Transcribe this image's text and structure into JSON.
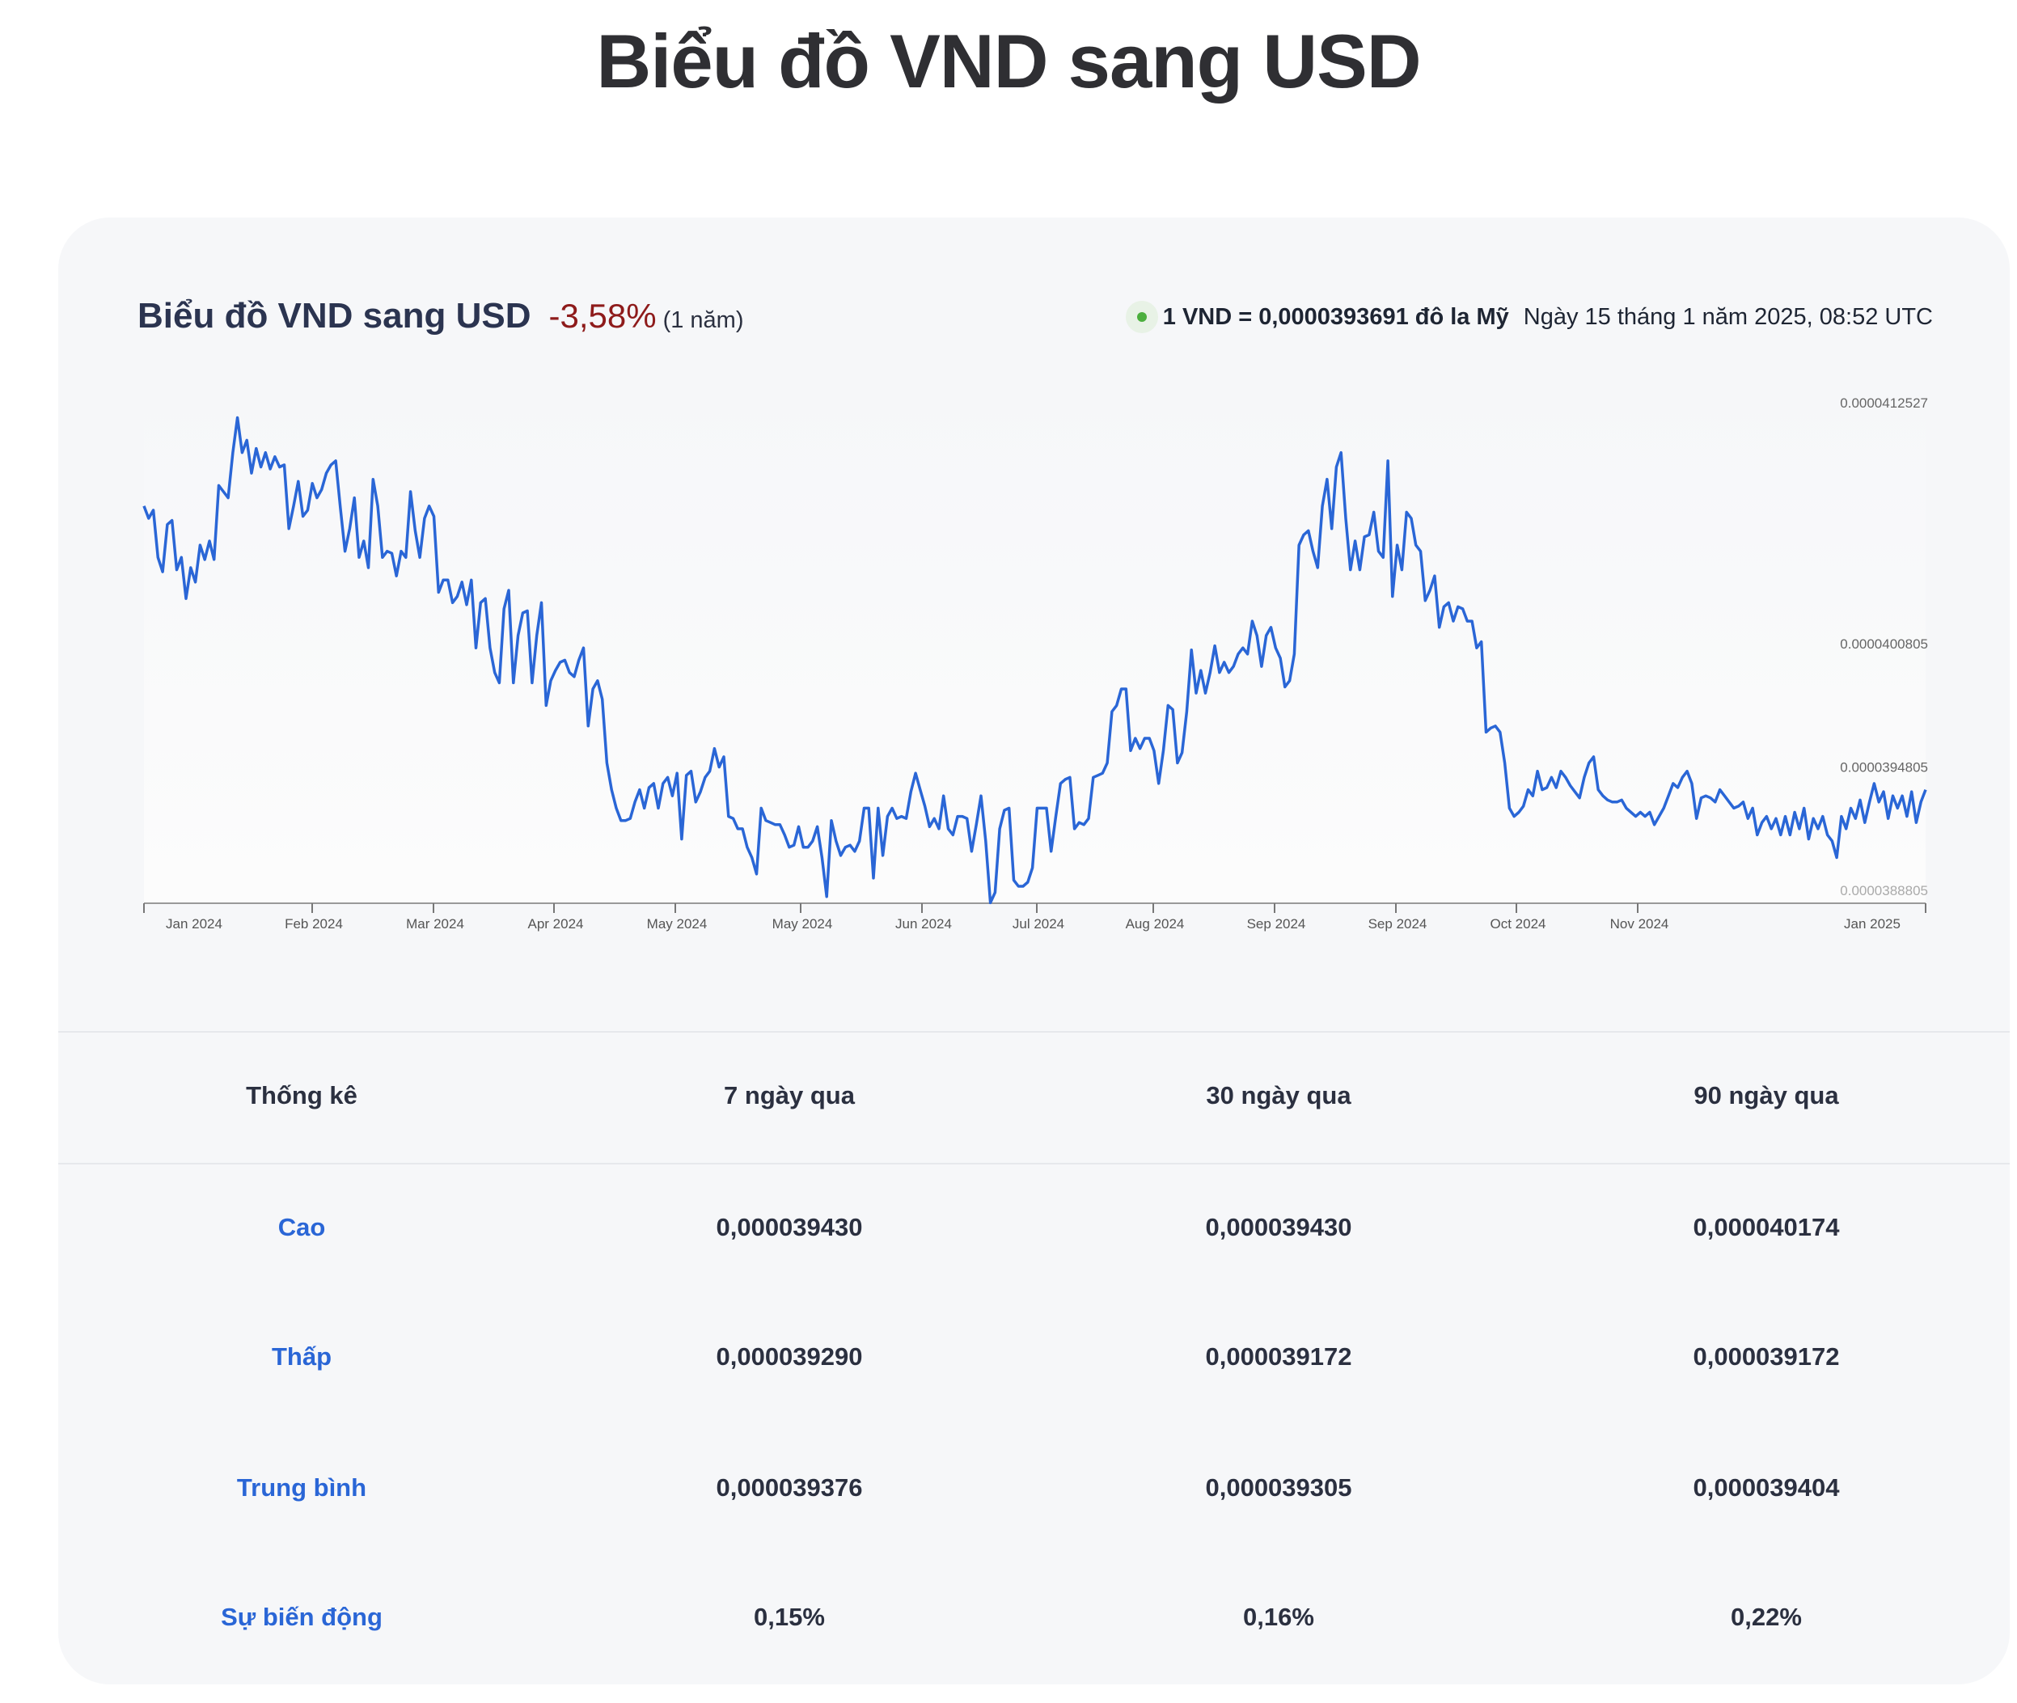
{
  "page_title": "Biểu đồ VND sang USD",
  "header": {
    "title": "Biểu đồ VND sang USD",
    "change": "-3,58%",
    "period": "(1 năm)",
    "rate": "1 VND = 0,0000393691 đô la Mỹ",
    "timestamp": "Ngày 15 tháng 1 năm 2025, 08:52 UTC",
    "live_indicator_color": "#4caf3e"
  },
  "chart_data": {
    "type": "line",
    "title": "",
    "xlabel": "",
    "ylabel": "",
    "line_color": "#2a66d6",
    "grid": false,
    "ylim": [
      3.88805e-05,
      4.12527e-05
    ],
    "y_ticks": [
      4.12527e-05,
      4.00805e-05,
      3.94805e-05,
      3.88805e-05
    ],
    "y_tick_labels": [
      "0.0000412527",
      "0.0000400805",
      "0.0000394805",
      "0.0000388805"
    ],
    "x_tick_labels": [
      "Jan 2024",
      "Feb 2024",
      "Mar 2024",
      "Apr 2024",
      "May 2024",
      "May 2024",
      "Jun 2024",
      "Jul 2024",
      "Aug 2024",
      "Sep 2024",
      "Sep 2024",
      "Oct 2024",
      "Nov 2024",
      "Jan 2025"
    ],
    "series": [
      {
        "values": [
          4.075e-05,
          4.069e-05,
          4.073e-05,
          4.05e-05,
          4.043e-05,
          4.066e-05,
          4.068e-05,
          4.044e-05,
          4.05e-05,
          4.03e-05,
          4.045e-05,
          4.038e-05,
          4.056e-05,
          4.049e-05,
          4.058e-05,
          4.049e-05,
          4.085e-05,
          4.082e-05,
          4.079e-05,
          4.101e-05,
          4.118e-05,
          4.101e-05,
          4.107e-05,
          4.091e-05,
          4.103e-05,
          4.094e-05,
          4.101e-05,
          4.093e-05,
          4.099e-05,
          4.094e-05,
          4.095e-05,
          4.064e-05,
          4.075e-05,
          4.087e-05,
          4.07e-05,
          4.073e-05,
          4.086e-05,
          4.079e-05,
          4.083e-05,
          4.091e-05,
          4.095e-05,
          4.097e-05,
          4.074e-05,
          4.053e-05,
          4.064e-05,
          4.079e-05,
          4.05e-05,
          4.058e-05,
          4.045e-05,
          4.088e-05,
          4.075e-05,
          4.05e-05,
          4.053e-05,
          4.052e-05,
          4.041e-05,
          4.053e-05,
          4.05e-05,
          4.082e-05,
          4.063e-05,
          4.05e-05,
          4.069e-05,
          4.075e-05,
          4.07e-05,
          4.033e-05,
          4.039e-05,
          4.039e-05,
          4.028e-05,
          4.031e-05,
          4.038e-05,
          4.027e-05,
          4.039e-05,
          4.006e-05,
          4.028e-05,
          4.03e-05,
          4.006e-05,
          3.994e-05,
          3.989e-05,
          4.025e-05,
          4.034e-05,
          3.989e-05,
          4.012e-05,
          4.023e-05,
          4.024e-05,
          3.989e-05,
          4.012e-05,
          4.028e-05,
          3.978e-05,
          3.99e-05,
          3.995e-05,
          3.999e-05,
          4e-05,
          3.994e-05,
          3.992e-05,
          4e-05,
          4.006e-05,
          3.968e-05,
          3.986e-05,
          3.99e-05,
          3.981e-05,
          3.95e-05,
          3.937e-05,
          3.928e-05,
          3.922e-05,
          3.922e-05,
          3.923e-05,
          3.931e-05,
          3.937e-05,
          3.928e-05,
          3.938e-05,
          3.94e-05,
          3.928e-05,
          3.94e-05,
          3.943e-05,
          3.934e-05,
          3.945e-05,
          3.913e-05,
          3.944e-05,
          3.946e-05,
          3.931e-05,
          3.936e-05,
          3.943e-05,
          3.946e-05,
          3.957e-05,
          3.948e-05,
          3.953e-05,
          3.924e-05,
          3.923e-05,
          3.918e-05,
          3.918e-05,
          3.909e-05,
          3.904e-05,
          3.896e-05,
          3.928e-05,
          3.922e-05,
          3.921e-05,
          3.92e-05,
          3.92e-05,
          3.915e-05,
          3.909e-05,
          3.91e-05,
          3.919e-05,
          3.909e-05,
          3.909e-05,
          3.912e-05,
          3.919e-05,
          3.904e-05,
          3.885e-05,
          3.922e-05,
          3.912e-05,
          3.905e-05,
          3.909e-05,
          3.91e-05,
          3.907e-05,
          3.912e-05,
          3.928e-05,
          3.928e-05,
          3.894e-05,
          3.928e-05,
          3.905e-05,
          3.924e-05,
          3.928e-05,
          3.923e-05,
          3.924e-05,
          3.923e-05,
          3.936e-05,
          3.945e-05,
          3.937e-05,
          3.929e-05,
          3.919e-05,
          3.923e-05,
          3.918e-05,
          3.934e-05,
          3.918e-05,
          3.915e-05,
          3.924e-05,
          3.924e-05,
          3.923e-05,
          3.907e-05,
          3.92e-05,
          3.934e-05,
          3.912e-05,
          3.882e-05,
          3.887e-05,
          3.918e-05,
          3.927e-05,
          3.928e-05,
          3.893e-05,
          3.89e-05,
          3.89e-05,
          3.892e-05,
          3.899e-05,
          3.928e-05,
          3.928e-05,
          3.928e-05,
          3.907e-05,
          3.924e-05,
          3.94e-05,
          3.942e-05,
          3.943e-05,
          3.918e-05,
          3.921e-05,
          3.92e-05,
          3.923e-05,
          3.943e-05,
          3.944e-05,
          3.945e-05,
          3.95e-05,
          3.975e-05,
          3.978e-05,
          3.986e-05,
          3.986e-05,
          3.956e-05,
          3.962e-05,
          3.957e-05,
          3.962e-05,
          3.962e-05,
          3.956e-05,
          3.94e-05,
          3.956e-05,
          3.978e-05,
          3.976e-05,
          3.95e-05,
          3.955e-05,
          3.975e-05,
          4.005e-05,
          3.984e-05,
          3.995e-05,
          3.984e-05,
          3.994e-05,
          4.007e-05,
          3.994e-05,
          3.999e-05,
          3.994e-05,
          3.997e-05,
          4.003e-05,
          4.006e-05,
          4.003e-05,
          4.019e-05,
          4.012e-05,
          3.997e-05,
          4.012e-05,
          4.016e-05,
          4.006e-05,
          4.001e-05,
          3.987e-05,
          3.99e-05,
          4.003e-05,
          4.056e-05,
          4.061e-05,
          4.063e-05,
          4.053e-05,
          4.045e-05,
          4.075e-05,
          4.088e-05,
          4.064e-05,
          4.094e-05,
          4.101e-05,
          4.069e-05,
          4.044e-05,
          4.058e-05,
          4.044e-05,
          4.06e-05,
          4.061e-05,
          4.072e-05,
          4.053e-05,
          4.05e-05,
          4.097e-05,
          4.031e-05,
          4.056e-05,
          4.044e-05,
          4.072e-05,
          4.069e-05,
          4.056e-05,
          4.053e-05,
          4.029e-05,
          4.034e-05,
          4.041e-05,
          4.016e-05,
          4.026e-05,
          4.028e-05,
          4.019e-05,
          4.026e-05,
          4.025e-05,
          4.019e-05,
          4.019e-05,
          4.006e-05,
          4.009e-05,
          3.965e-05,
          3.967e-05,
          3.968e-05,
          3.965e-05,
          3.95e-05,
          3.928e-05,
          3.924e-05,
          3.926e-05,
          3.929e-05,
          3.937e-05,
          3.934e-05,
          3.946e-05,
          3.937e-05,
          3.938e-05,
          3.943e-05,
          3.938e-05,
          3.946e-05,
          3.943e-05,
          3.939e-05,
          3.936e-05,
          3.933e-05,
          3.943e-05,
          3.95e-05,
          3.953e-05,
          3.937e-05,
          3.934e-05,
          3.932e-05,
          3.931e-05,
          3.931e-05,
          3.932e-05,
          3.928e-05,
          3.926e-05,
          3.924e-05,
          3.926e-05,
          3.924e-05,
          3.926e-05,
          3.92e-05,
          3.924e-05,
          3.928e-05,
          3.934e-05,
          3.94e-05,
          3.938e-05,
          3.943e-05,
          3.946e-05,
          3.94e-05,
          3.923e-05,
          3.933e-05,
          3.934e-05,
          3.933e-05,
          3.931e-05,
          3.937e-05,
          3.934e-05,
          3.931e-05,
          3.928e-05,
          3.929e-05,
          3.931e-05,
          3.923e-05,
          3.928e-05,
          3.915e-05,
          3.921e-05,
          3.924e-05,
          3.918e-05,
          3.923e-05,
          3.915e-05,
          3.924e-05,
          3.915e-05,
          3.926e-05,
          3.918e-05,
          3.928e-05,
          3.913e-05,
          3.923e-05,
          3.918e-05,
          3.924e-05,
          3.915e-05,
          3.912e-05,
          3.904e-05,
          3.924e-05,
          3.918e-05,
          3.928e-05,
          3.923e-05,
          3.932e-05,
          3.921e-05,
          3.931e-05,
          3.94e-05,
          3.931e-05,
          3.936e-05,
          3.923e-05,
          3.934e-05,
          3.928e-05,
          3.934e-05,
          3.924e-05,
          3.936e-05,
          3.921e-05,
          3.931e-05,
          3.937e-05
        ]
      }
    ]
  },
  "stats": {
    "headers": [
      "Thống kê",
      "7 ngày qua",
      "30 ngày qua",
      "90 ngày qua"
    ],
    "rows": [
      {
        "label": "Cao",
        "values": [
          "0,000039430",
          "0,000039430",
          "0,000040174"
        ]
      },
      {
        "label": "Thấp",
        "values": [
          "0,000039290",
          "0,000039172",
          "0,000039172"
        ]
      },
      {
        "label": "Trung bình",
        "values": [
          "0,000039376",
          "0,000039305",
          "0,000039404"
        ]
      },
      {
        "label": "Sự biến động",
        "values": [
          "0,15%",
          "0,16%",
          "0,22%"
        ]
      }
    ]
  }
}
